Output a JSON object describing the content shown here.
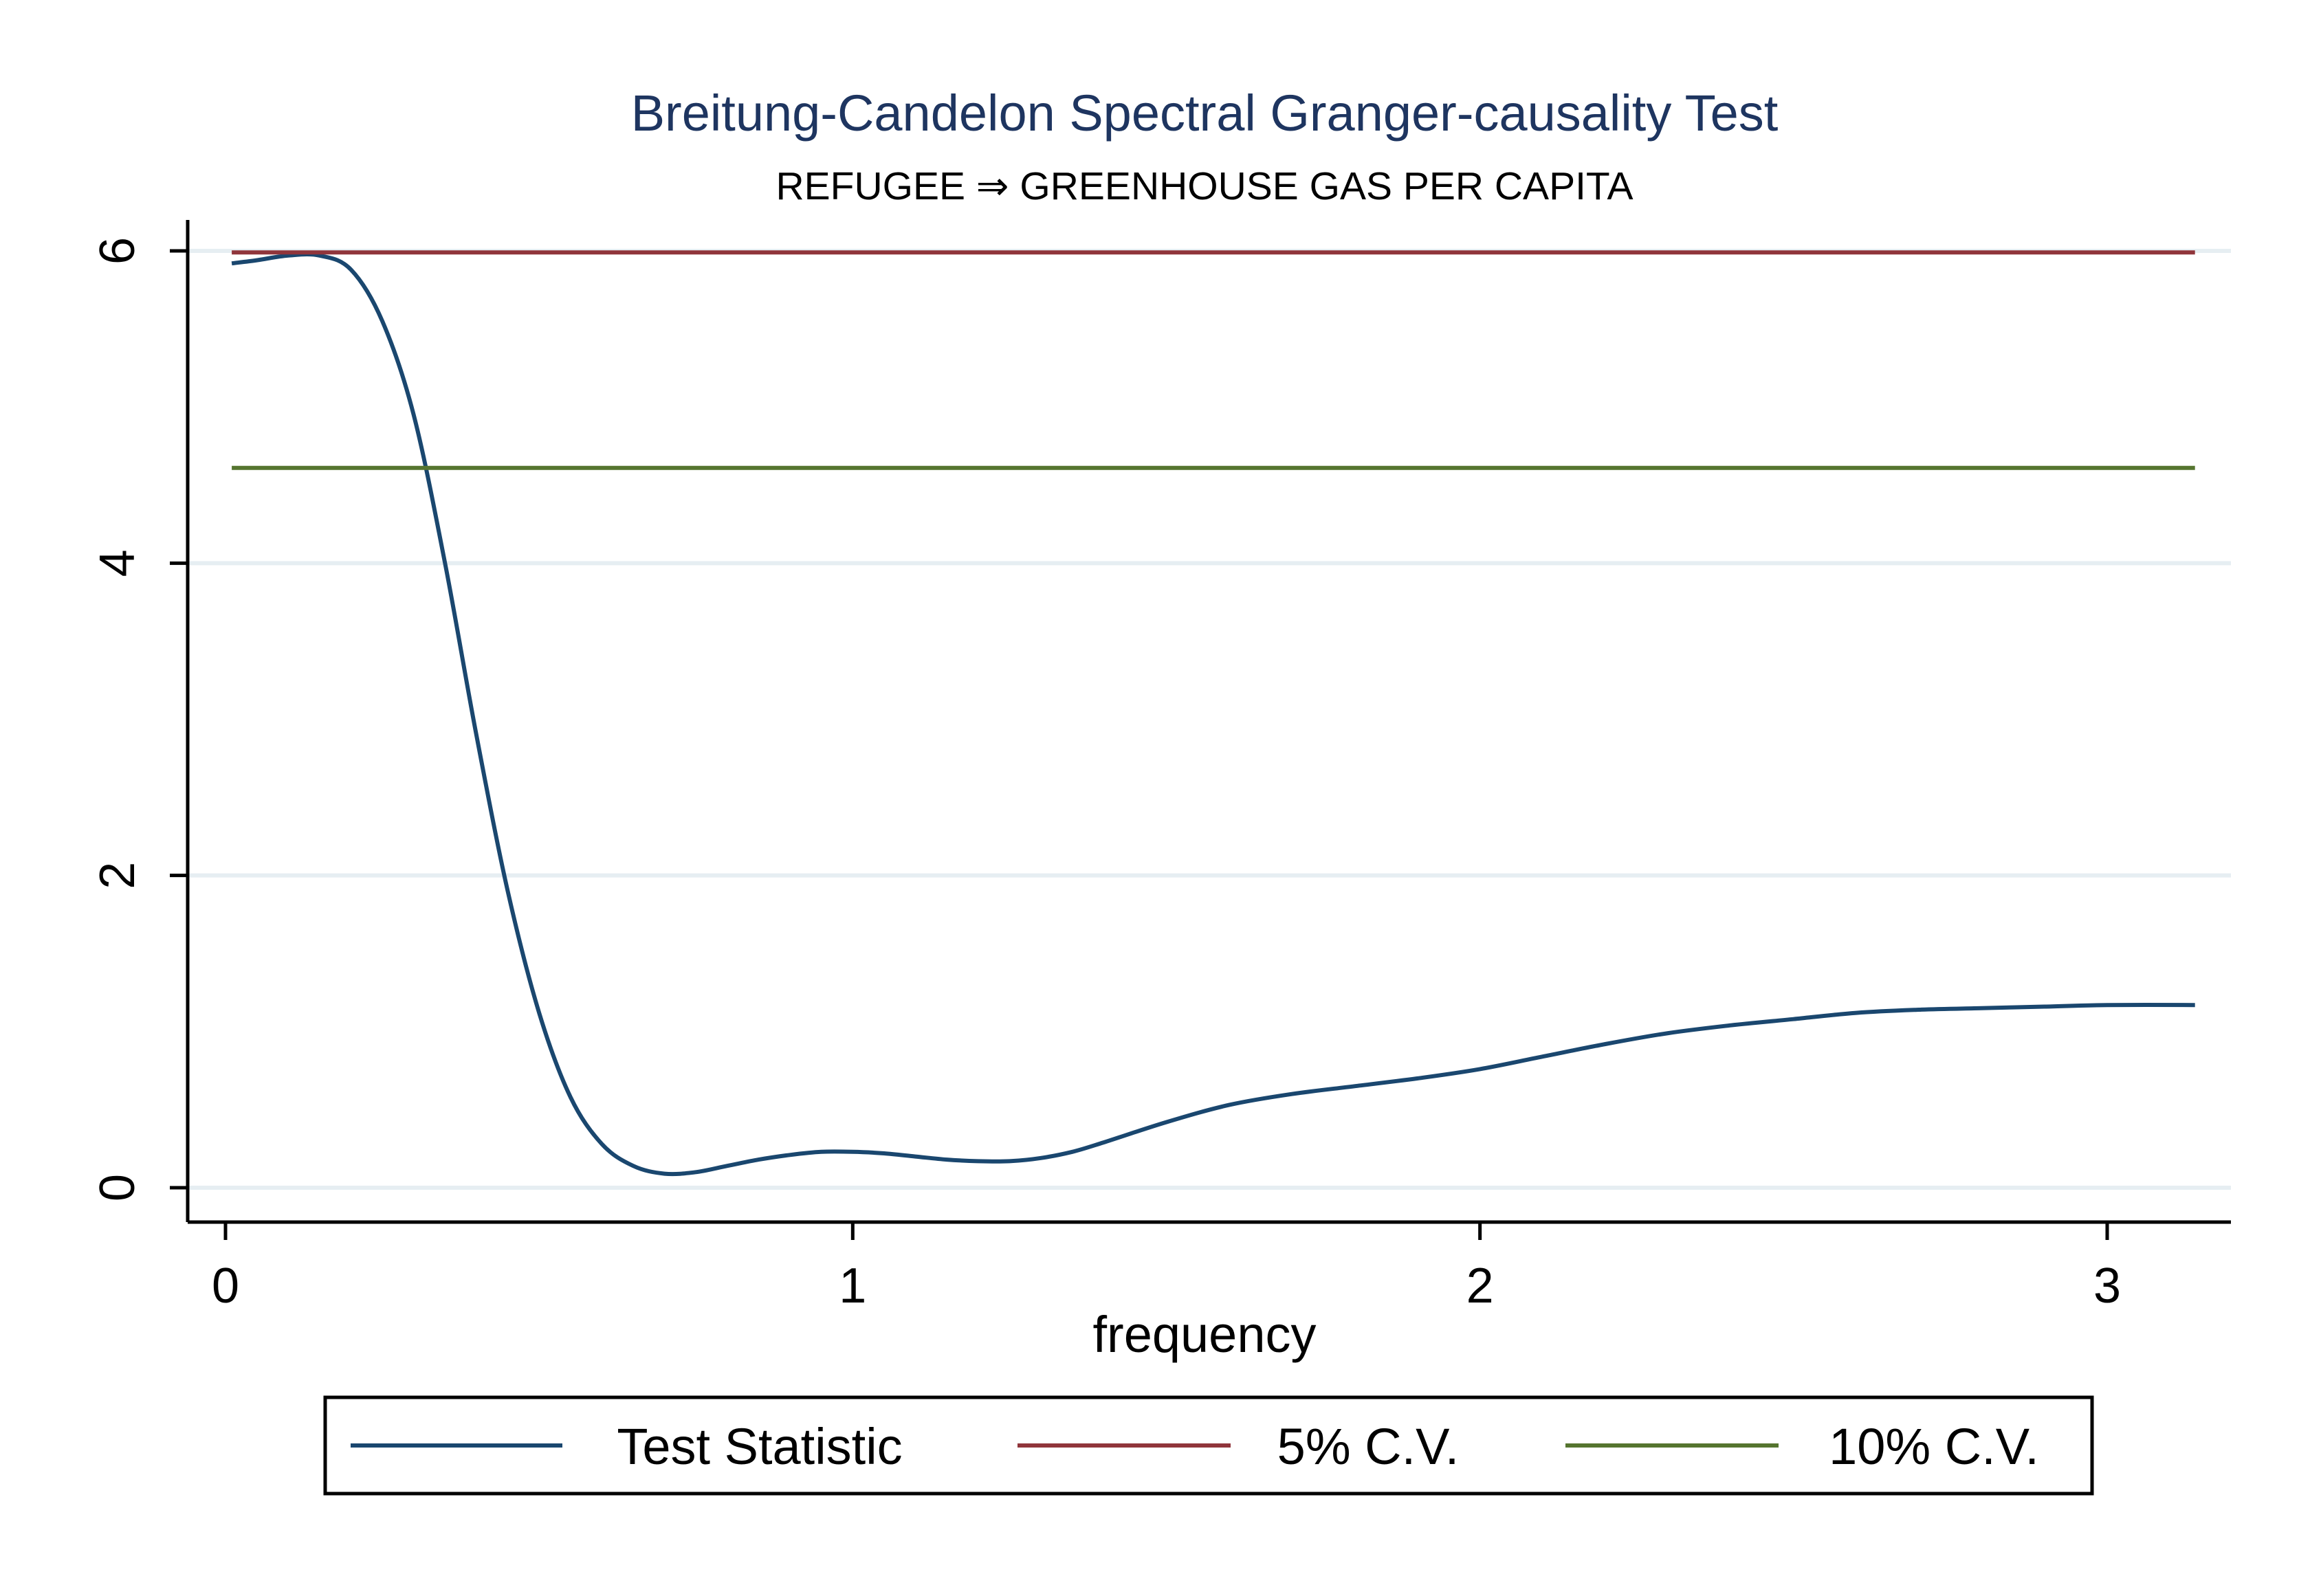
{
  "chart_data": {
    "type": "line",
    "title": "Breitung-Candelon Spectral Granger-causality Test",
    "subtitle": "REFUGEE ⇒ GREENHOUSE GAS PER CAPITA",
    "xlabel": "frequency",
    "ylabel": "",
    "xlim": [
      0,
      3.1416
    ],
    "ylim": [
      0,
      6
    ],
    "xticks": [
      0,
      1,
      2,
      3
    ],
    "yticks": [
      0,
      2,
      4,
      6
    ],
    "grid": true,
    "legend_position": "bottom",
    "series": [
      {
        "name": "Test Statistic",
        "color": "#1a476f",
        "x": [
          0.01,
          0.05,
          0.1,
          0.15,
          0.2,
          0.25,
          0.3,
          0.35,
          0.4,
          0.45,
          0.5,
          0.55,
          0.6,
          0.65,
          0.7,
          0.75,
          0.8,
          0.85,
          0.9,
          0.95,
          1.0,
          1.05,
          1.1,
          1.15,
          1.2,
          1.25,
          1.3,
          1.35,
          1.4,
          1.5,
          1.6,
          1.7,
          1.8,
          1.9,
          2.0,
          2.1,
          2.2,
          2.3,
          2.4,
          2.5,
          2.6,
          2.7,
          2.8,
          2.9,
          3.0,
          3.14
        ],
        "values": [
          5.92,
          5.94,
          5.97,
          5.97,
          5.88,
          5.55,
          4.95,
          4.0,
          2.9,
          1.9,
          1.12,
          0.58,
          0.28,
          0.14,
          0.09,
          0.1,
          0.14,
          0.18,
          0.21,
          0.23,
          0.23,
          0.22,
          0.2,
          0.18,
          0.17,
          0.17,
          0.19,
          0.23,
          0.29,
          0.42,
          0.53,
          0.6,
          0.65,
          0.7,
          0.76,
          0.84,
          0.92,
          0.99,
          1.04,
          1.08,
          1.12,
          1.14,
          1.15,
          1.16,
          1.17,
          1.17
        ]
      },
      {
        "name": "5% C.V.",
        "color": "#90353b",
        "x": [
          0.01,
          3.14
        ],
        "values": [
          5.99,
          5.99
        ]
      },
      {
        "name": "10% C.V.",
        "color": "#55752f",
        "x": [
          0.01,
          3.14
        ],
        "values": [
          4.61,
          4.61
        ]
      }
    ]
  }
}
